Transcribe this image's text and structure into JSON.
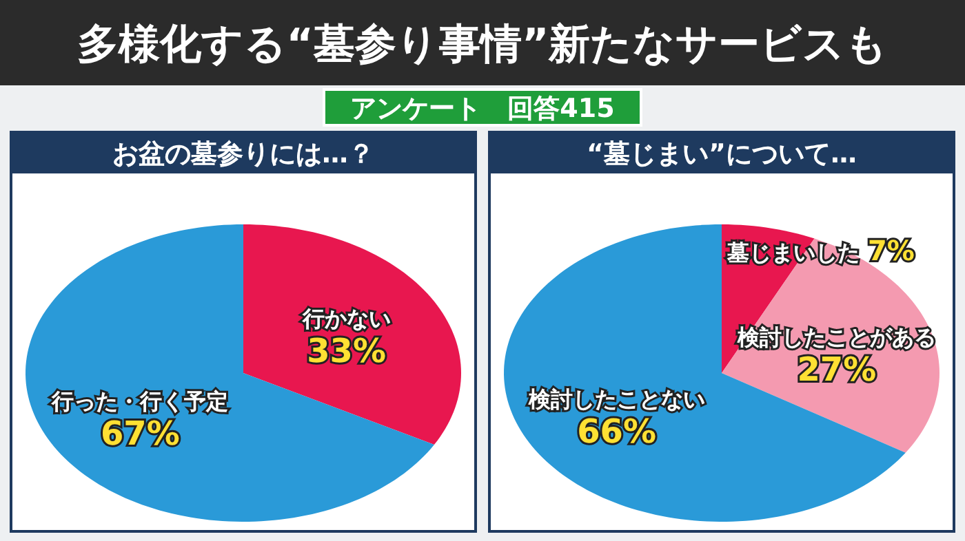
{
  "chart_data": [
    {
      "type": "pie",
      "title": "お盆の墓参りには…？",
      "annotations": [
        "多様化する“墓参り事情”新たなサービスも",
        "アンケート　回答415"
      ],
      "categories": [
        "行かない",
        "行った・行く予定"
      ],
      "values": [
        33,
        67
      ],
      "colors": [
        "#e8174f",
        "#2a9ad8"
      ],
      "value_labels": [
        "33%",
        "67%"
      ]
    },
    {
      "type": "pie",
      "title": "“墓じまい”について…",
      "categories": [
        "墓じまいした",
        "検討したことがある",
        "検討したことない"
      ],
      "values": [
        7,
        27,
        66
      ],
      "colors": [
        "#e8174f",
        "#f49ab0",
        "#2a9ad8"
      ],
      "value_labels": [
        "7%",
        "27%",
        "66%"
      ]
    }
  ]
}
